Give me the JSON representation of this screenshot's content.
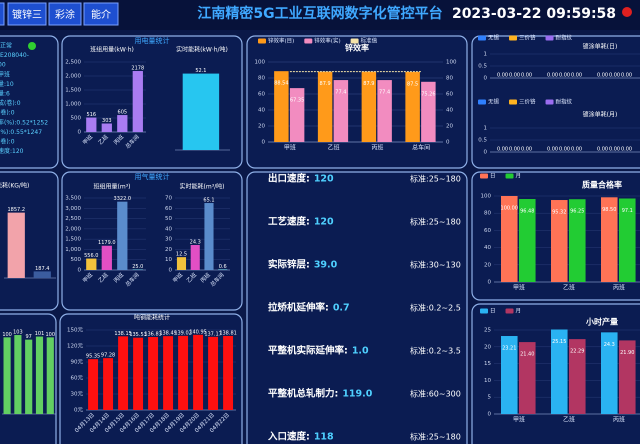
{
  "header": {
    "tabs": [
      "镀锌三",
      "彩涂",
      "能介"
    ],
    "title": "江南精密5G工业互联网数字化管控平台",
    "datetime": "2023-03-22 09:59:58"
  },
  "status_panel": {
    "lines": [
      ":正常",
      ":E208040-",
      "00",
      "甲班",
      "量:10",
      "量:6",
      "成(卷):0",
      "(卷):0",
      "率(%):0.52*1252",
      "(%):0.55*1247",
      "(卷):0",
      "速度:120"
    ]
  },
  "panels": [
    {
      "title": "用电量统计"
    },
    {
      "title": "用气量统计"
    }
  ],
  "charts": [
    {
      "type": "bar",
      "title": "班组用量(kW·h)",
      "categories": [
        "甲班",
        "乙班",
        "丙班",
        "总车间"
      ],
      "series": [
        {
          "name": "班组用量",
          "color": "#a97cf2",
          "values": [
            516,
            303,
            605,
            2178
          ]
        }
      ],
      "ylim": [
        0,
        2500
      ],
      "yticks": [
        0,
        500,
        {
          "value": 1000,
          "label": "1,000"
        },
        {
          "value": 1500,
          "label": "1,500"
        },
        {
          "value": 2000,
          "label": "2,000"
        },
        {
          "value": 2500,
          "label": "2,500"
        }
      ]
    },
    {
      "type": "bar",
      "title": "实时能耗(kW·h/吨)",
      "categories": [
        null
      ],
      "series": [
        {
          "name": "实时能耗",
          "color": "#27c6f0",
          "values": [
            52.1
          ]
        }
      ],
      "ylim": [
        0,
        60
      ]
    },
    {
      "type": "bar",
      "title": "锌效率",
      "categories": [
        "甲班",
        "乙班",
        "丙班",
        "总车间"
      ],
      "series": [
        {
          "name": "锌效率(目)",
          "color": "#ff9a1a",
          "values": [
            88.54,
            87.9,
            87.9,
            87.5
          ]
        },
        {
          "name": "锌效率(实)",
          "color": "#f28cc0",
          "values": [
            67.35,
            77.4,
            77.4,
            75.26
          ]
        },
        {
          "name": "标准值",
          "type": "line",
          "color": "#f5e3a8",
          "values": [
            88,
            88,
            88,
            88
          ]
        }
      ],
      "ylim": [
        0,
        100
      ],
      "yticks": [
        0,
        20,
        40,
        60,
        80,
        100
      ],
      "y2lim": [
        0,
        100
      ],
      "y2ticks": [
        0,
        20,
        40,
        60,
        80,
        100
      ]
    },
    {
      "type": "bar",
      "title": "镀涂单耗(日)",
      "categories": [
        null,
        null,
        null
      ],
      "series": [
        {
          "name": "无锡",
          "color": "#2f80ff",
          "values": [
            0,
            0,
            0
          ],
          "value_labels": [
            "0.00",
            "0.00",
            "0.00"
          ]
        },
        {
          "name": "三价铬",
          "color": "#ffb320",
          "values": [
            0,
            0,
            0
          ],
          "value_labels": [
            "0.00",
            "0.00",
            "0.00"
          ]
        },
        {
          "name": "耐指纹",
          "color": "#9b6df0",
          "values": [
            0,
            0,
            0
          ],
          "value_labels": [
            "0.00",
            "0.00",
            "0.00"
          ]
        }
      ],
      "ylim": [
        0,
        1
      ],
      "yticks": [
        0,
        0.5,
        1
      ]
    },
    {
      "type": "bar",
      "title": "镀涂单耗(月)",
      "categories": [
        null,
        null,
        null
      ],
      "series": [
        {
          "name": "无锡",
          "color": "#2f80ff",
          "values": [
            0,
            0,
            0
          ],
          "value_labels": [
            "0.00",
            "0.00",
            "0.00"
          ]
        },
        {
          "name": "三价铬",
          "color": "#ffb320",
          "values": [
            0,
            0,
            0
          ],
          "value_labels": [
            "0.00",
            "0.00",
            "0.00"
          ]
        },
        {
          "name": "耐指纹",
          "color": "#9b6df0",
          "values": [
            0,
            0,
            0
          ],
          "value_labels": [
            "0.00",
            "0.00",
            "0.00"
          ]
        }
      ],
      "ylim": [
        0,
        1
      ],
      "yticks": [
        0,
        0.5,
        1
      ]
    },
    {
      "type": "bar",
      "title": "能耗(KG/吨)",
      "categories": [
        null,
        null
      ],
      "series": [
        {
          "name": "能耗",
          "colors": [
            "#f2a3aa",
            "#3b5c9e"
          ],
          "values": [
            1857.2,
            187.4
          ]
        }
      ],
      "ylim": [
        0,
        2500
      ]
    },
    {
      "type": "bar",
      "title": "班组用量(m³)",
      "categories": [
        "甲班",
        "乙班",
        "丙班",
        "总车间"
      ],
      "series": [
        {
          "name": "班组用量",
          "colors": [
            "#f2c23c",
            "#e24fc4",
            "#5a8ccc",
            "#7bd7e8"
          ],
          "values": [
            556,
            1179,
            3322,
            25
          ],
          "value_labels": [
            "556.0",
            "1179.0",
            "3322.0",
            "25.0"
          ]
        }
      ],
      "ylim": [
        0,
        3500
      ],
      "yticks": [
        0,
        500,
        {
          "value": 1000,
          "label": "1,000"
        },
        {
          "value": 1500,
          "label": "1,500"
        },
        {
          "value": 2000,
          "label": "2,000"
        },
        {
          "value": 2500,
          "label": "2,500"
        },
        {
          "value": 3000,
          "label": "3,000"
        },
        {
          "value": 3500,
          "label": "3,500"
        }
      ]
    },
    {
      "type": "bar",
      "title": "实时能耗(m³/吨)",
      "categories": [
        "甲班",
        "乙班",
        "丙班",
        "总车间"
      ],
      "series": [
        {
          "name": "实时能耗",
          "colors": [
            "#f2c23c",
            "#e24fc4",
            "#5a8ccc",
            "#7bd7e8"
          ],
          "values": [
            12.5,
            24.3,
            65.1,
            0.6
          ]
        }
      ],
      "ylim": [
        0,
        70
      ],
      "yticks": [
        0,
        10,
        20,
        30,
        40,
        50,
        60,
        70
      ]
    },
    {
      "type": "bar",
      "categories": [
        null,
        null,
        null,
        null,
        null
      ],
      "series": [
        {
          "name": "能耗",
          "color": "#62cf62",
          "values": [
            100,
            103,
            97,
            101,
            100
          ]
        }
      ],
      "ylim": [
        0,
        120
      ]
    },
    {
      "type": "bar",
      "title": "吨钢能耗统计",
      "categories": [
        "04月13日",
        "04月14日",
        "04月15日",
        "04月16日",
        "04月17日",
        "04月18日",
        "04月19日",
        "04月20日",
        "04月21日",
        "04月22日"
      ],
      "series": [
        {
          "name": "吨钢能耗",
          "color": "#ff1010",
          "values": [
            95.35,
            97.28,
            138.15,
            135.53,
            136.83,
            138.49,
            139.02,
            140.95,
            137.17,
            138.81
          ]
        }
      ],
      "ylim": [
        0,
        150
      ],
      "yticks": [
        {
          "value": 0,
          "label": "0元"
        },
        {
          "value": 30,
          "label": "30元"
        },
        {
          "value": 60,
          "label": "60元"
        },
        {
          "value": 90,
          "label": "90元"
        },
        {
          "value": 120,
          "label": "120元"
        },
        {
          "value": 150,
          "label": "150元"
        }
      ]
    },
    {
      "type": "bar",
      "title": "质量合格率",
      "categories": [
        "甲班",
        "乙班",
        "丙班"
      ],
      "series": [
        {
          "name": "日",
          "color": "#ff7356",
          "values": [
            100,
            95.32,
            98.5
          ],
          "value_labels": [
            "100.00",
            "95.32",
            "98.50"
          ]
        },
        {
          "name": "月",
          "color": "#22cc33",
          "values": [
            96.48,
            96.25,
            97.1
          ]
        }
      ],
      "ylim": [
        0,
        100
      ],
      "yticks": [
        0,
        20,
        40,
        60,
        80,
        100
      ]
    },
    {
      "type": "bar",
      "title": "小时产量",
      "categories": [
        "甲班",
        "乙班",
        "丙班"
      ],
      "series": [
        {
          "name": "日",
          "color": "#2ab3f2",
          "values": [
            23.21,
            25.15,
            24.3
          ]
        },
        {
          "name": "月",
          "color": "#b23662",
          "values": [
            21.4,
            22.29,
            21.9
          ],
          "value_labels": [
            "21.40",
            "22.29",
            "21.90"
          ]
        }
      ],
      "ylim": [
        0,
        25
      ],
      "yticks": [
        0,
        5,
        10,
        15,
        20,
        25
      ]
    }
  ],
  "metrics": [
    {
      "label": "出口速度:",
      "value": "120",
      "standard": "标准:25~180"
    },
    {
      "label": "工艺速度:",
      "value": "120",
      "standard": "标准:25~180"
    },
    {
      "label": "实际锌层:",
      "value": "39.0",
      "standard": "标准:30~130"
    },
    {
      "label": "拉矫机延伸率:",
      "value": "0.7",
      "standard": "标准:0.2~2.5"
    },
    {
      "label": "平整机实际延伸率:",
      "value": "1.0",
      "standard": "标准:0.2~3.5"
    },
    {
      "label": "平整机总轧制力:",
      "value": "119.0",
      "standard": "标准:60~300"
    },
    {
      "label": "入口速度:",
      "value": "118",
      "standard": "标准:25~180"
    }
  ]
}
